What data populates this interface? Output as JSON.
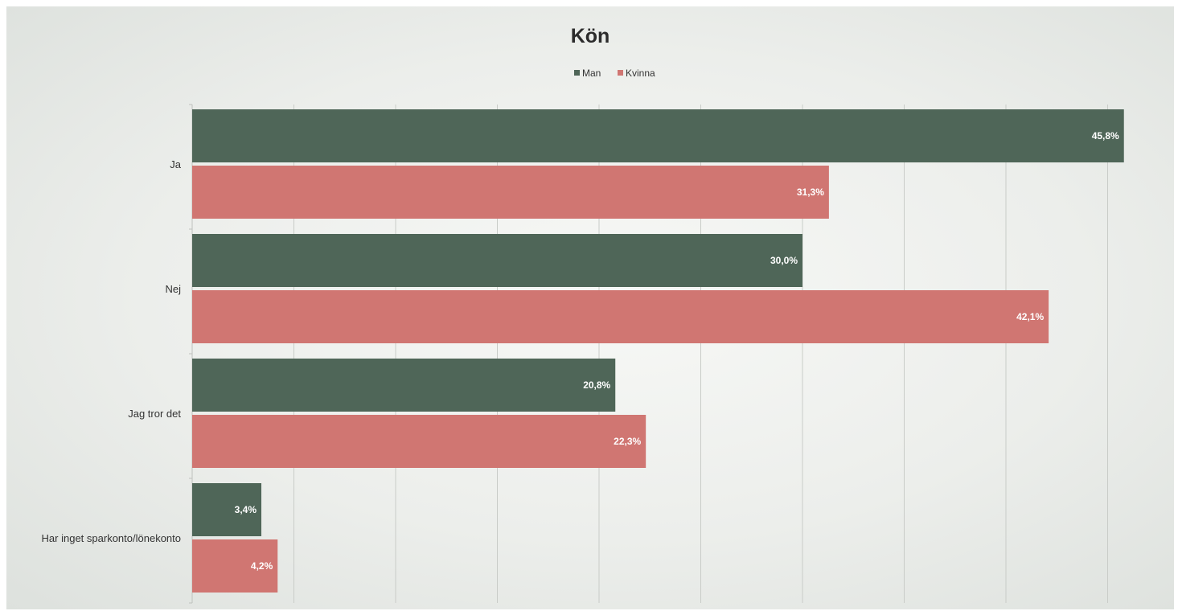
{
  "chart_data": {
    "type": "bar",
    "orientation": "horizontal",
    "title": "Kön",
    "categories": [
      "Ja",
      "Nej",
      "Jag tror det",
      "Har inget sparkonto/lönekonto"
    ],
    "series": [
      {
        "name": "Man",
        "values": [
          45.8,
          30.0,
          20.8,
          3.4
        ],
        "labels": [
          "45,8%",
          "30,0%",
          "20,8%",
          "3,4%"
        ],
        "color": "#4f6658"
      },
      {
        "name": "Kvinna",
        "values": [
          31.3,
          42.1,
          22.3,
          4.2
        ],
        "labels": [
          "31,3%",
          "42,1%",
          "22,3%",
          "4,2%"
        ],
        "color": "#d07672"
      }
    ],
    "xlim": [
      0,
      45
    ],
    "grid": true,
    "legend": "top-center",
    "axis_tick_labels_visible": false
  }
}
